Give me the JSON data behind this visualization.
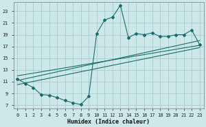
{
  "xlabel": "Humidex (Indice chaleur)",
  "background_color": "#cce8e8",
  "grid_color": "#aacccc",
  "line_color": "#1a6b6b",
  "xlim": [
    -0.5,
    23.5
  ],
  "ylim": [
    6.5,
    24.5
  ],
  "yticks": [
    7,
    9,
    11,
    13,
    15,
    17,
    19,
    21,
    23
  ],
  "xticks": [
    0,
    1,
    2,
    3,
    4,
    5,
    6,
    7,
    8,
    9,
    10,
    11,
    12,
    13,
    14,
    15,
    16,
    17,
    18,
    19,
    20,
    21,
    22,
    23
  ],
  "main_x": [
    0,
    1,
    2,
    3,
    4,
    5,
    6,
    7,
    8,
    9,
    10,
    11,
    12,
    13,
    14,
    15,
    16,
    17,
    18,
    19,
    20,
    21,
    22,
    23
  ],
  "main_y": [
    11.5,
    10.7,
    10.0,
    8.8,
    8.7,
    8.3,
    7.8,
    7.4,
    7.1,
    8.5,
    19.2,
    21.5,
    22.0,
    24.0,
    18.5,
    19.2,
    19.0,
    19.3,
    18.7,
    18.7,
    19.0,
    19.0,
    19.8,
    17.3
  ],
  "trend1_x": [
    0,
    23
  ],
  "trend1_y": [
    11.2,
    18.0
  ],
  "trend2_x": [
    0,
    23
  ],
  "trend2_y": [
    10.5,
    16.8
  ],
  "trend3_x": [
    0,
    23
  ],
  "trend3_y": [
    12.0,
    17.2
  ]
}
